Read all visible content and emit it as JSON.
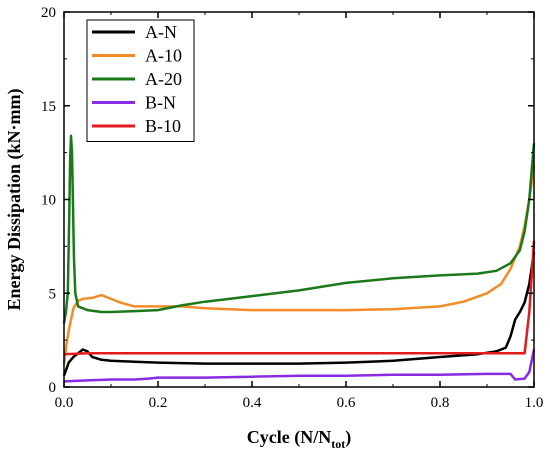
{
  "chart_data": {
    "type": "line",
    "title": "",
    "xlabel_main": "Cycle (N/N",
    "xlabel_sub": "tot",
    "xlabel_close": ")",
    "ylabel": "Energy Dissipation (kN·mm)",
    "xlim": [
      0.0,
      1.0
    ],
    "ylim": [
      0,
      20
    ],
    "x_ticks": [
      "0.0",
      "0.2",
      "0.4",
      "0.6",
      "0.8",
      "1.0"
    ],
    "y_ticks": [
      "0",
      "5",
      "10",
      "15",
      "20"
    ],
    "grid": false,
    "legend_position": "top-left",
    "series": [
      {
        "name": "A-N",
        "color": "#000000",
        "points": [
          [
            0.0,
            0.6
          ],
          [
            0.01,
            1.3
          ],
          [
            0.02,
            1.6
          ],
          [
            0.03,
            1.8
          ],
          [
            0.04,
            2.0
          ],
          [
            0.05,
            1.9
          ],
          [
            0.06,
            1.6
          ],
          [
            0.08,
            1.45
          ],
          [
            0.1,
            1.4
          ],
          [
            0.15,
            1.35
          ],
          [
            0.2,
            1.3
          ],
          [
            0.3,
            1.25
          ],
          [
            0.4,
            1.25
          ],
          [
            0.5,
            1.25
          ],
          [
            0.6,
            1.3
          ],
          [
            0.7,
            1.4
          ],
          [
            0.8,
            1.6
          ],
          [
            0.88,
            1.75
          ],
          [
            0.92,
            1.9
          ],
          [
            0.94,
            2.1
          ],
          [
            0.95,
            2.7
          ],
          [
            0.96,
            3.6
          ],
          [
            0.97,
            4.0
          ],
          [
            0.98,
            4.5
          ],
          [
            0.99,
            5.5
          ],
          [
            1.0,
            7.2
          ]
        ]
      },
      {
        "name": "A-10",
        "color": "#f28c28",
        "points": [
          [
            0.0,
            1.2
          ],
          [
            0.005,
            2.2
          ],
          [
            0.01,
            3.0
          ],
          [
            0.02,
            4.2
          ],
          [
            0.03,
            4.6
          ],
          [
            0.04,
            4.7
          ],
          [
            0.06,
            4.75
          ],
          [
            0.08,
            4.9
          ],
          [
            0.1,
            4.7
          ],
          [
            0.12,
            4.5
          ],
          [
            0.15,
            4.3
          ],
          [
            0.2,
            4.3
          ],
          [
            0.25,
            4.3
          ],
          [
            0.3,
            4.2
          ],
          [
            0.4,
            4.1
          ],
          [
            0.5,
            4.1
          ],
          [
            0.6,
            4.1
          ],
          [
            0.7,
            4.15
          ],
          [
            0.8,
            4.3
          ],
          [
            0.85,
            4.55
          ],
          [
            0.9,
            5.0
          ],
          [
            0.93,
            5.5
          ],
          [
            0.95,
            6.3
          ],
          [
            0.97,
            7.5
          ],
          [
            0.98,
            8.6
          ],
          [
            0.99,
            10.0
          ],
          [
            1.0,
            11.8
          ]
        ]
      },
      {
        "name": "A-20",
        "color": "#1a7a1a",
        "points": [
          [
            0.0,
            3.4
          ],
          [
            0.004,
            4.0
          ],
          [
            0.008,
            5.0
          ],
          [
            0.011,
            9.0
          ],
          [
            0.013,
            12.0
          ],
          [
            0.015,
            13.4
          ],
          [
            0.017,
            12.5
          ],
          [
            0.019,
            10.0
          ],
          [
            0.021,
            7.0
          ],
          [
            0.024,
            5.0
          ],
          [
            0.03,
            4.3
          ],
          [
            0.05,
            4.1
          ],
          [
            0.08,
            4.0
          ],
          [
            0.1,
            4.0
          ],
          [
            0.15,
            4.05
          ],
          [
            0.2,
            4.1
          ],
          [
            0.25,
            4.35
          ],
          [
            0.3,
            4.55
          ],
          [
            0.4,
            4.85
          ],
          [
            0.5,
            5.15
          ],
          [
            0.6,
            5.55
          ],
          [
            0.7,
            5.8
          ],
          [
            0.8,
            5.95
          ],
          [
            0.88,
            6.05
          ],
          [
            0.92,
            6.2
          ],
          [
            0.95,
            6.6
          ],
          [
            0.97,
            7.3
          ],
          [
            0.98,
            8.3
          ],
          [
            0.99,
            10.0
          ],
          [
            0.995,
            11.5
          ],
          [
            1.0,
            13.0
          ]
        ]
      },
      {
        "name": "B-N",
        "color": "#8a2be2",
        "points": [
          [
            0.0,
            0.3
          ],
          [
            0.05,
            0.35
          ],
          [
            0.1,
            0.4
          ],
          [
            0.15,
            0.4
          ],
          [
            0.18,
            0.45
          ],
          [
            0.2,
            0.5
          ],
          [
            0.3,
            0.5
          ],
          [
            0.4,
            0.55
          ],
          [
            0.5,
            0.6
          ],
          [
            0.6,
            0.6
          ],
          [
            0.7,
            0.65
          ],
          [
            0.8,
            0.65
          ],
          [
            0.9,
            0.7
          ],
          [
            0.95,
            0.7
          ],
          [
            0.96,
            0.4
          ],
          [
            0.98,
            0.45
          ],
          [
            0.99,
            0.8
          ],
          [
            1.0,
            2.0
          ]
        ]
      },
      {
        "name": "B-10",
        "color": "#e41a1c",
        "points": [
          [
            0.0,
            1.75
          ],
          [
            0.05,
            1.8
          ],
          [
            0.1,
            1.8
          ],
          [
            0.2,
            1.8
          ],
          [
            0.3,
            1.8
          ],
          [
            0.4,
            1.8
          ],
          [
            0.5,
            1.8
          ],
          [
            0.6,
            1.8
          ],
          [
            0.7,
            1.8
          ],
          [
            0.8,
            1.8
          ],
          [
            0.9,
            1.8
          ],
          [
            0.95,
            1.8
          ],
          [
            0.98,
            1.8
          ],
          [
            0.99,
            4.0
          ],
          [
            1.0,
            7.8
          ]
        ]
      }
    ]
  }
}
